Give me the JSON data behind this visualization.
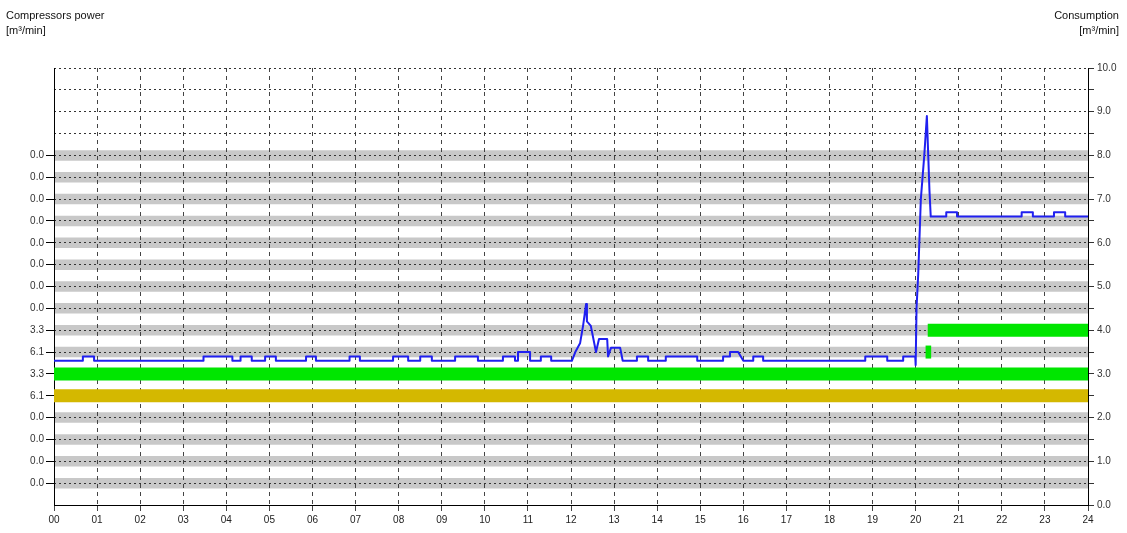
{
  "chart_data": {
    "type": "line",
    "ylabel": "Compressors power\n[m³/min]",
    "y2label": "Consumption\n[m³/min]",
    "xlim": [
      0,
      24
    ],
    "xticks": [
      {
        "value": 0,
        "label": "00"
      },
      {
        "value": 1,
        "label": "01"
      },
      {
        "value": 2,
        "label": "02"
      },
      {
        "value": 3,
        "label": "03"
      },
      {
        "value": 4,
        "label": "04"
      },
      {
        "value": 5,
        "label": "05"
      },
      {
        "value": 6,
        "label": "06"
      },
      {
        "value": 7,
        "label": "07"
      },
      {
        "value": 8,
        "label": "08"
      },
      {
        "value": 9,
        "label": "09"
      },
      {
        "value": 10,
        "label": "10"
      },
      {
        "value": 11,
        "label": "11"
      },
      {
        "value": 12,
        "label": "12"
      },
      {
        "value": 13,
        "label": "13"
      },
      {
        "value": 14,
        "label": "14"
      },
      {
        "value": 15,
        "label": "15"
      },
      {
        "value": 16,
        "label": "16"
      },
      {
        "value": 17,
        "label": "17"
      },
      {
        "value": 18,
        "label": "18"
      },
      {
        "value": 19,
        "label": "19"
      },
      {
        "value": 20,
        "label": "20"
      },
      {
        "value": 21,
        "label": "21"
      },
      {
        "value": 22,
        "label": "22"
      },
      {
        "value": 23,
        "label": "23"
      },
      {
        "value": 24,
        "label": "24"
      }
    ],
    "ylim": [
      0,
      10
    ],
    "yticks": [
      {
        "value": 0,
        "label": "0.0"
      },
      {
        "value": 0.5,
        "label": null
      },
      {
        "value": 1,
        "label": "1.0"
      },
      {
        "value": 1.5,
        "label": null
      },
      {
        "value": 2,
        "label": "2.0"
      },
      {
        "value": 2.5,
        "label": null
      },
      {
        "value": 3,
        "label": "3.0"
      },
      {
        "value": 3.5,
        "label": null
      },
      {
        "value": 4,
        "label": "4.0"
      },
      {
        "value": 4.5,
        "label": null
      },
      {
        "value": 5,
        "label": "5.0"
      },
      {
        "value": 5.5,
        "label": null
      },
      {
        "value": 6,
        "label": "6.0"
      },
      {
        "value": 6.5,
        "label": null
      },
      {
        "value": 7,
        "label": "7.0"
      },
      {
        "value": 7.5,
        "label": null
      },
      {
        "value": 8,
        "label": "8.0"
      },
      {
        "value": 8.5,
        "label": null
      },
      {
        "value": 9,
        "label": "9.0"
      },
      {
        "value": 9.5,
        "label": null
      },
      {
        "value": 10,
        "label": "10.0"
      }
    ],
    "grid": true,
    "annotations": [
      "0.0",
      "0.0",
      "0.0",
      "0.0",
      "0.0",
      "0.0",
      "0.0",
      "0.0",
      "3.3",
      "6.1",
      "3.3",
      "6.1",
      "0.0",
      "0.0",
      "0.0",
      "0.0"
    ],
    "bands": [
      {
        "axis": "y",
        "from": 0.38,
        "to": 0.62,
        "color": "#c8c8c8"
      },
      {
        "axis": "y",
        "from": 0.88,
        "to": 1.12,
        "color": "#c8c8c8"
      },
      {
        "axis": "y",
        "from": 1.38,
        "to": 1.62,
        "color": "#c8c8c8"
      },
      {
        "axis": "y",
        "from": 1.88,
        "to": 2.12,
        "color": "#c8c8c8"
      },
      {
        "axis": "y",
        "from": 3.38,
        "to": 3.62,
        "color": "#c8c8c8"
      },
      {
        "axis": "y",
        "from": 3.88,
        "to": 4.12,
        "color": "#c8c8c8"
      },
      {
        "axis": "y",
        "from": 4.38,
        "to": 4.62,
        "color": "#c8c8c8"
      },
      {
        "axis": "y",
        "from": 4.88,
        "to": 5.12,
        "color": "#c8c8c8"
      },
      {
        "axis": "y",
        "from": 5.38,
        "to": 5.62,
        "color": "#c8c8c8"
      },
      {
        "axis": "y",
        "from": 5.88,
        "to": 6.12,
        "color": "#c8c8c8"
      },
      {
        "axis": "y",
        "from": 6.38,
        "to": 6.62,
        "color": "#c8c8c8"
      },
      {
        "axis": "y",
        "from": 6.88,
        "to": 7.12,
        "color": "#c8c8c8"
      },
      {
        "axis": "y",
        "from": 7.38,
        "to": 7.62,
        "color": "#c8c8c8"
      },
      {
        "axis": "y",
        "from": 7.88,
        "to": 8.12,
        "color": "#c8c8c8"
      }
    ],
    "series": [
      {
        "type": "line",
        "color": "#d4b800",
        "x": [
          0,
          24
        ],
        "values": [
          2.5,
          2.5
        ]
      },
      {
        "type": "line",
        "color": "#00e600",
        "x": [
          0,
          24
        ],
        "values": [
          3,
          3
        ]
      },
      {
        "type": "line",
        "color": "#00e600",
        "x": [
          20.23,
          20.36
        ],
        "values": [
          3.5,
          3.5
        ]
      },
      {
        "type": "line",
        "color": "#00e600",
        "x": [
          20.28,
          24
        ],
        "values": [
          4,
          4
        ]
      },
      {
        "type": "line",
        "color": "#2020f0",
        "x": [
          0,
          0.67,
          0.67,
          0.93,
          0.93,
          3.47,
          3.47,
          4.14,
          4.14,
          4.33,
          4.33,
          4.59,
          4.59,
          4.9,
          4.9,
          5.15,
          5.15,
          5.85,
          5.85,
          6.08,
          6.08,
          6.86,
          6.86,
          7.1,
          7.1,
          7.87,
          7.87,
          8.22,
          8.22,
          8.5,
          8.5,
          8.77,
          8.77,
          9.31,
          9.31,
          9.84,
          9.84,
          10.42,
          10.42,
          10.7,
          10.7,
          10.77,
          10.77,
          11.05,
          11.05,
          11.3,
          11.3,
          11.54,
          11.54,
          12.02,
          12.1,
          12.21,
          12.28,
          12.35,
          12.37,
          12.46,
          12.58,
          12.65,
          12.84,
          12.86,
          12.93,
          13.14,
          13.2,
          13.53,
          13.53,
          13.79,
          13.79,
          14.2,
          14.2,
          14.93,
          14.93,
          15.53,
          15.53,
          15.69,
          15.69,
          15.88,
          16.0,
          16.23,
          16.23,
          16.46,
          16.46,
          18.83,
          18.83,
          19.34,
          19.34,
          19.71,
          19.71,
          19.99,
          20.0,
          20.02,
          20.06,
          20.12,
          20.2,
          20.26,
          20.32,
          20.35,
          20.71,
          20.71,
          20.96,
          20.96,
          22.46,
          22.46,
          22.72,
          22.72,
          23.21,
          23.21,
          23.47,
          23.47,
          24
        ],
        "values": [
          3.3,
          3.3,
          3.4,
          3.4,
          3.3,
          3.3,
          3.4,
          3.4,
          3.3,
          3.3,
          3.4,
          3.4,
          3.3,
          3.3,
          3.4,
          3.4,
          3.3,
          3.3,
          3.4,
          3.4,
          3.3,
          3.3,
          3.4,
          3.4,
          3.3,
          3.3,
          3.4,
          3.4,
          3.3,
          3.3,
          3.4,
          3.4,
          3.3,
          3.3,
          3.4,
          3.4,
          3.3,
          3.3,
          3.4,
          3.4,
          3.3,
          3.3,
          3.5,
          3.5,
          3.3,
          3.3,
          3.4,
          3.4,
          3.3,
          3.3,
          3.5,
          3.7,
          4.1,
          4.6,
          4.2,
          4.1,
          3.5,
          3.8,
          3.8,
          3.4,
          3.6,
          3.6,
          3.3,
          3.3,
          3.4,
          3.4,
          3.3,
          3.3,
          3.4,
          3.4,
          3.3,
          3.3,
          3.4,
          3.4,
          3.5,
          3.5,
          3.3,
          3.3,
          3.4,
          3.4,
          3.3,
          3.3,
          3.4,
          3.4,
          3.3,
          3.3,
          3.4,
          3.4,
          3.2,
          4.5,
          5.3,
          7.0,
          8.0,
          8.9,
          7.2,
          6.6,
          6.6,
          6.7,
          6.7,
          6.6,
          6.6,
          6.7,
          6.7,
          6.6,
          6.6,
          6.7,
          6.7,
          6.6,
          6.6
        ]
      }
    ]
  }
}
